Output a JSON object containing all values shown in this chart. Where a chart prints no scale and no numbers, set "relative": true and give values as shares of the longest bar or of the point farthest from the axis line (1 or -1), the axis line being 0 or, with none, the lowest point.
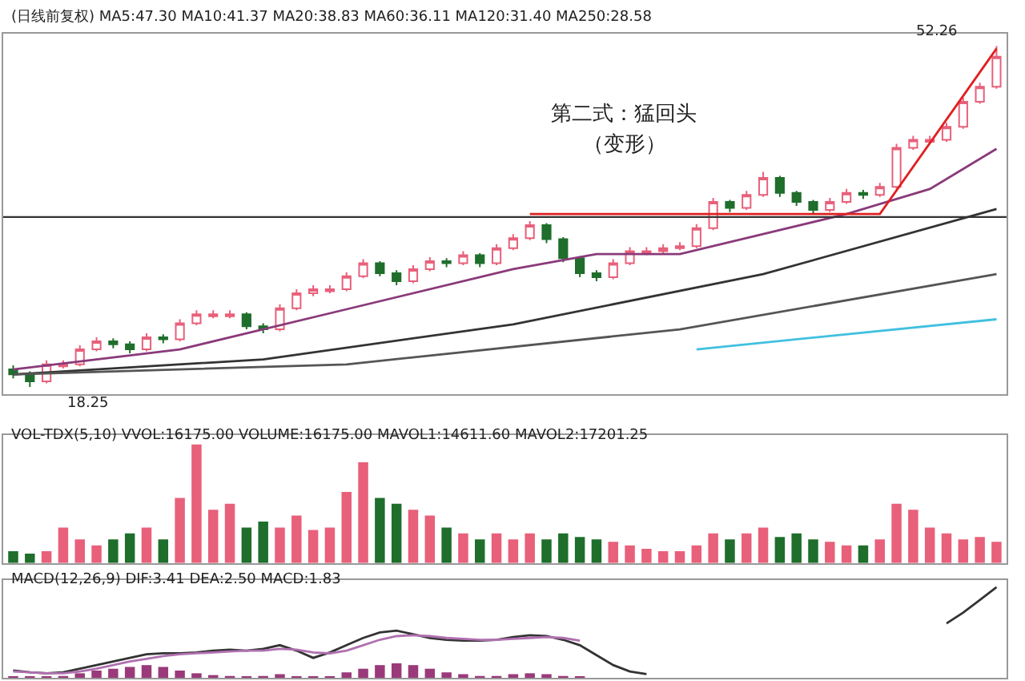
{
  "chart_data": [
    {
      "type": "candlestick",
      "categories": [
        null,
        null,
        null,
        null,
        null,
        null,
        null,
        null,
        null,
        null,
        null,
        null,
        null,
        null,
        null,
        null,
        null,
        null,
        null,
        null,
        null,
        null,
        null,
        null,
        null,
        null,
        null,
        null,
        null,
        null,
        null,
        null,
        null,
        null,
        null,
        null,
        null,
        null,
        null,
        null,
        null,
        null,
        null,
        null,
        null,
        null,
        null,
        null,
        null,
        null,
        null,
        null,
        null,
        null,
        null,
        null,
        null,
        null,
        null,
        null
      ],
      "ohlc": [
        [
          20.0,
          20.4,
          19.1,
          19.5
        ],
        [
          19.5,
          19.8,
          18.25,
          18.8
        ],
        [
          18.8,
          20.9,
          18.6,
          20.5
        ],
        [
          20.3,
          20.9,
          20.1,
          20.5
        ],
        [
          20.5,
          22.4,
          20.3,
          22.0
        ],
        [
          22.0,
          23.2,
          21.8,
          22.8
        ],
        [
          22.8,
          23.1,
          22.1,
          22.5
        ],
        [
          22.5,
          22.8,
          21.6,
          22.0
        ],
        [
          22.0,
          23.6,
          21.8,
          23.2
        ],
        [
          23.2,
          23.5,
          22.6,
          23.0
        ],
        [
          23.0,
          25.0,
          22.8,
          24.6
        ],
        [
          24.6,
          25.9,
          24.4,
          25.5
        ],
        [
          25.3,
          25.9,
          25.1,
          25.5
        ],
        [
          25.3,
          25.9,
          25.1,
          25.5
        ],
        [
          25.5,
          25.7,
          24.0,
          24.3
        ],
        [
          24.3,
          24.6,
          23.6,
          24.0
        ],
        [
          24.0,
          26.5,
          23.8,
          26.1
        ],
        [
          26.1,
          28.0,
          25.9,
          27.6
        ],
        [
          27.6,
          28.4,
          27.3,
          28.0
        ],
        [
          27.8,
          28.4,
          27.6,
          28.0
        ],
        [
          28.0,
          29.7,
          27.8,
          29.3
        ],
        [
          29.3,
          31.0,
          29.1,
          30.6
        ],
        [
          30.6,
          30.8,
          29.3,
          29.6
        ],
        [
          29.6,
          29.9,
          28.4,
          28.8
        ],
        [
          28.8,
          30.4,
          28.6,
          30.0
        ],
        [
          30.0,
          31.2,
          29.8,
          30.8
        ],
        [
          30.8,
          31.1,
          30.2,
          30.6
        ],
        [
          30.6,
          31.8,
          30.4,
          31.4
        ],
        [
          31.4,
          31.6,
          30.2,
          30.6
        ],
        [
          30.6,
          32.5,
          30.4,
          32.1
        ],
        [
          32.1,
          33.5,
          31.9,
          33.1
        ],
        [
          33.1,
          34.8,
          32.9,
          34.4
        ],
        [
          34.4,
          34.6,
          32.6,
          33.0
        ],
        [
          33.0,
          33.2,
          30.7,
          31.1
        ],
        [
          31.1,
          31.3,
          29.2,
          29.6
        ],
        [
          29.6,
          29.9,
          28.8,
          29.2
        ],
        [
          29.2,
          31.0,
          29.0,
          30.6
        ],
        [
          30.6,
          32.2,
          30.4,
          31.8
        ],
        [
          31.6,
          32.2,
          31.4,
          31.8
        ],
        [
          31.8,
          32.5,
          31.6,
          32.1
        ],
        [
          32.1,
          32.7,
          31.9,
          32.3
        ],
        [
          32.3,
          34.5,
          32.1,
          34.1
        ],
        [
          34.1,
          37.1,
          33.9,
          36.7
        ],
        [
          36.7,
          36.9,
          35.7,
          36.1
        ],
        [
          36.1,
          37.8,
          35.9,
          37.4
        ],
        [
          37.4,
          39.7,
          37.2,
          39.1
        ],
        [
          39.1,
          39.3,
          37.2,
          37.6
        ],
        [
          37.6,
          37.8,
          36.3,
          36.7
        ],
        [
          36.7,
          36.9,
          35.5,
          35.9
        ],
        [
          35.9,
          37.1,
          35.7,
          36.7
        ],
        [
          36.7,
          38.0,
          36.5,
          37.6
        ],
        [
          37.6,
          37.9,
          37.0,
          37.4
        ],
        [
          37.4,
          38.6,
          37.2,
          38.2
        ],
        [
          38.2,
          42.5,
          38.0,
          42.1
        ],
        [
          42.1,
          43.3,
          41.9,
          42.9
        ],
        [
          42.7,
          43.3,
          42.5,
          42.9
        ],
        [
          42.9,
          44.6,
          42.7,
          44.2
        ],
        [
          44.2,
          47.1,
          44.0,
          46.7
        ],
        [
          46.7,
          48.6,
          46.5,
          48.2
        ],
        [
          48.2,
          52.26,
          48.0,
          51.2
        ]
      ],
      "colors": [
        "#1f6e2c",
        "#1f6e2c",
        "#e8607a",
        "#e8607a",
        "#e8607a",
        "#e8607a",
        "#1f6e2c",
        "#1f6e2c",
        "#e8607a",
        "#1f6e2c",
        "#e8607a",
        "#e8607a",
        "#e8607a",
        "#e8607a",
        "#1f6e2c",
        "#1f6e2c",
        "#e8607a",
        "#e8607a",
        "#e8607a",
        "#e8607a",
        "#e8607a",
        "#e8607a",
        "#1f6e2c",
        "#1f6e2c",
        "#e8607a",
        "#e8607a",
        "#1f6e2c",
        "#e8607a",
        "#1f6e2c",
        "#e8607a",
        "#e8607a",
        "#e8607a",
        "#1f6e2c",
        "#1f6e2c",
        "#1f6e2c",
        "#1f6e2c",
        "#e8607a",
        "#e8607a",
        "#e8607a",
        "#e8607a",
        "#e8607a",
        "#e8607a",
        "#e8607a",
        "#1f6e2c",
        "#e8607a",
        "#e8607a",
        "#1f6e2c",
        "#1f6e2c",
        "#1f6e2c",
        "#e8607a",
        "#e8607a",
        "#1f6e2c",
        "#e8607a",
        "#e8607a",
        "#e8607a",
        "#e8607a",
        "#e8607a",
        "#e8607a",
        "#e8607a",
        "#e8607a"
      ],
      "series": [
        {
          "type": "line",
          "color": "#8a3a7a",
          "values": [
            20.0,
            null,
            null,
            null,
            null,
            null,
            null,
            null,
            null,
            null,
            22.0,
            null,
            null,
            null,
            null,
            null,
            null,
            null,
            null,
            null,
            26.0,
            null,
            null,
            null,
            null,
            null,
            null,
            null,
            null,
            null,
            30.0,
            null,
            null,
            null,
            null,
            31.5,
            null,
            null,
            null,
            null,
            31.5,
            null,
            null,
            null,
            null,
            33.5,
            null,
            null,
            null,
            null,
            35.5,
            null,
            null,
            null,
            null,
            38.0,
            null,
            null,
            null,
            42.0
          ]
        },
        {
          "type": "line",
          "color": "#333333",
          "values": [
            19.5,
            null,
            null,
            null,
            null,
            null,
            null,
            null,
            null,
            null,
            null,
            null,
            null,
            null,
            null,
            21.0,
            null,
            null,
            null,
            null,
            null,
            null,
            null,
            null,
            null,
            null,
            null,
            null,
            null,
            null,
            24.5,
            null,
            null,
            null,
            null,
            null,
            null,
            null,
            null,
            null,
            null,
            null,
            null,
            null,
            null,
            29.5,
            null,
            null,
            null,
            null,
            null,
            null,
            null,
            null,
            null,
            null,
            null,
            null,
            null,
            36.0
          ]
        },
        {
          "type": "line",
          "color": "#555555",
          "values": [
            19.5,
            null,
            null,
            null,
            null,
            null,
            null,
            null,
            null,
            null,
            null,
            null,
            null,
            null,
            null,
            null,
            null,
            null,
            null,
            null,
            20.5,
            null,
            null,
            null,
            null,
            null,
            null,
            null,
            null,
            null,
            null,
            null,
            null,
            null,
            null,
            null,
            null,
            null,
            null,
            null,
            24.0,
            null,
            null,
            null,
            null,
            null,
            null,
            null,
            null,
            null,
            null,
            null,
            null,
            null,
            null,
            null,
            null,
            null,
            null,
            29.5
          ]
        },
        {
          "type": "line",
          "color": "#40c0e0",
          "values": [
            null,
            null,
            null,
            null,
            null,
            null,
            null,
            null,
            null,
            null,
            null,
            null,
            null,
            null,
            null,
            null,
            null,
            null,
            null,
            null,
            null,
            null,
            null,
            null,
            null,
            null,
            null,
            null,
            null,
            null,
            null,
            null,
            null,
            null,
            null,
            null,
            null,
            null,
            null,
            null,
            null,
            22.0,
            null,
            null,
            null,
            null,
            null,
            null,
            null,
            null,
            null,
            null,
            null,
            null,
            null,
            null,
            null,
            null,
            null,
            25.0
          ]
        },
        {
          "type": "line",
          "color": "#e02020",
          "values": [
            null,
            null,
            null,
            null,
            null,
            null,
            null,
            null,
            null,
            null,
            null,
            null,
            null,
            null,
            null,
            null,
            null,
            null,
            null,
            null,
            null,
            null,
            null,
            null,
            null,
            null,
            null,
            null,
            null,
            null,
            null,
            35.5,
            null,
            null,
            null,
            null,
            null,
            null,
            null,
            null,
            null,
            null,
            null,
            null,
            null,
            null,
            null,
            null,
            null,
            null,
            null,
            null,
            35.5,
            null,
            null,
            null,
            null,
            null,
            null,
            52.0
          ]
        }
      ],
      "ref_lines": [
        {
          "axis": "y",
          "value": 35.2,
          "color": "#333333"
        }
      ],
      "ylim": [
        17.5,
        53.5
      ],
      "tick_labels": false,
      "annotations": [
        "(日线前复权) MA5:47.30 MA10:41.37 MA20:38.83 MA60:36.11 MA120:31.40 MA250:28.58",
        "52.26",
        "18.25",
        "第二式：猛回头",
        "（变形）"
      ]
    },
    {
      "type": "bar",
      "relative": true,
      "categories": [
        null,
        null,
        null,
        null,
        null,
        null,
        null,
        null,
        null,
        null,
        null,
        null,
        null,
        null,
        null,
        null,
        null,
        null,
        null,
        null,
        null,
        null,
        null,
        null,
        null,
        null,
        null,
        null,
        null,
        null,
        null,
        null,
        null,
        null,
        null,
        null,
        null,
        null,
        null,
        null,
        null,
        null,
        null,
        null,
        null,
        null,
        null,
        null,
        null,
        null,
        null,
        null,
        null,
        null,
        null,
        null,
        null,
        null,
        null,
        null
      ],
      "values": [
        0.1,
        0.08,
        0.1,
        0.3,
        0.2,
        0.15,
        0.2,
        0.25,
        0.3,
        0.2,
        0.55,
        1.0,
        0.45,
        0.5,
        0.3,
        0.35,
        0.3,
        0.4,
        0.28,
        0.3,
        0.6,
        0.85,
        0.55,
        0.5,
        0.45,
        0.4,
        0.3,
        0.25,
        0.2,
        0.25,
        0.2,
        0.25,
        0.2,
        0.25,
        0.22,
        0.2,
        0.18,
        0.15,
        0.12,
        0.1,
        0.1,
        0.15,
        0.25,
        0.2,
        0.25,
        0.3,
        0.22,
        0.25,
        0.2,
        0.18,
        0.15,
        0.15,
        0.2,
        0.5,
        0.45,
        0.3,
        0.25,
        0.2,
        0.22,
        0.18
      ],
      "colors": [
        "#1f6e2c",
        "#1f6e2c",
        "#e8607a",
        "#e8607a",
        "#e8607a",
        "#e8607a",
        "#1f6e2c",
        "#1f6e2c",
        "#e8607a",
        "#1f6e2c",
        "#e8607a",
        "#e8607a",
        "#e8607a",
        "#e8607a",
        "#1f6e2c",
        "#1f6e2c",
        "#e8607a",
        "#e8607a",
        "#e8607a",
        "#e8607a",
        "#e8607a",
        "#e8607a",
        "#1f6e2c",
        "#1f6e2c",
        "#e8607a",
        "#e8607a",
        "#1f6e2c",
        "#e8607a",
        "#1f6e2c",
        "#e8607a",
        "#e8607a",
        "#e8607a",
        "#1f6e2c",
        "#1f6e2c",
        "#1f6e2c",
        "#1f6e2c",
        "#e8607a",
        "#e8607a",
        "#e8607a",
        "#e8607a",
        "#e8607a",
        "#e8607a",
        "#e8607a",
        "#1f6e2c",
        "#e8607a",
        "#e8607a",
        "#1f6e2c",
        "#1f6e2c",
        "#1f6e2c",
        "#e8607a",
        "#e8607a",
        "#1f6e2c",
        "#e8607a",
        "#e8607a",
        "#e8607a",
        "#e8607a",
        "#e8607a",
        "#e8607a",
        "#e8607a",
        "#e8607a"
      ],
      "tick_labels": false,
      "annotations": [
        "VOL-TDX(5,10) VVOL:16175.00 VOLUME:16175.00 MAVOL1:14611.60 MAVOL2:17201.25"
      ]
    },
    {
      "type": "line",
      "relative": true,
      "categories": [
        null,
        null,
        null,
        null,
        null,
        null,
        null,
        null,
        null,
        null,
        null,
        null,
        null,
        null,
        null,
        null,
        null,
        null,
        null,
        null,
        null,
        null,
        null,
        null,
        null,
        null,
        null,
        null,
        null,
        null,
        null,
        null,
        null,
        null,
        null,
        null,
        null,
        null,
        null,
        null,
        null,
        null,
        null,
        null,
        null,
        null,
        null,
        null,
        null,
        null,
        null,
        null,
        null,
        null,
        null,
        null,
        null,
        null,
        null,
        null
      ],
      "series": [
        {
          "color": "#333333",
          "values": [
            0.08,
            0.06,
            0.05,
            0.06,
            0.1,
            0.14,
            0.18,
            0.22,
            0.26,
            0.27,
            0.27,
            0.28,
            0.3,
            0.31,
            0.3,
            0.32,
            0.36,
            0.3,
            0.22,
            0.28,
            0.36,
            0.44,
            0.5,
            0.52,
            0.48,
            0.44,
            0.42,
            0.41,
            0.41,
            0.42,
            0.45,
            0.47,
            0.46,
            0.42,
            0.36,
            0.25,
            0.14,
            0.07,
            0.04,
            null,
            null,
            null,
            null,
            null,
            null,
            null,
            null,
            null,
            null,
            null,
            null,
            null,
            null,
            null,
            null,
            null,
            0.6,
            0.72,
            0.86,
            1.0
          ]
        },
        {
          "color": "#b070b0",
          "values": [
            0.07,
            0.06,
            0.05,
            0.05,
            0.07,
            0.1,
            0.14,
            0.18,
            0.21,
            0.24,
            0.26,
            0.27,
            0.28,
            0.29,
            0.3,
            0.3,
            0.32,
            0.31,
            0.28,
            0.27,
            0.3,
            0.36,
            0.42,
            0.46,
            0.47,
            0.46,
            0.44,
            0.43,
            0.42,
            0.42,
            0.43,
            0.44,
            0.45,
            0.44,
            0.41,
            null,
            null,
            null,
            null,
            null,
            null,
            null,
            null,
            null,
            null,
            null,
            null,
            null,
            null,
            null,
            null,
            null,
            null,
            null,
            null,
            null,
            null,
            null,
            null,
            null
          ]
        },
        {
          "type": "bar",
          "color": "#9a3a7a",
          "values": [
            0.01,
            0.01,
            0.01,
            0.02,
            0.05,
            0.08,
            0.1,
            0.12,
            0.14,
            0.12,
            0.08,
            0.05,
            0.03,
            0.02,
            0.01,
            0.02,
            0.04,
            0.01,
            0.01,
            0.01,
            0.06,
            0.1,
            0.14,
            0.16,
            0.14,
            0.1,
            0.06,
            0.04,
            0.02,
            0.02,
            0.04,
            0.05,
            0.04,
            0.02,
            0.01,
            null,
            null,
            null,
            null,
            null,
            null,
            null,
            null,
            null,
            null,
            null,
            null,
            null,
            null,
            null,
            null,
            null,
            null,
            null,
            null,
            null,
            null,
            null,
            null,
            null
          ]
        }
      ],
      "tick_labels": false,
      "annotations": [
        "MACD(12,26,9) DIF:3.41 DEA:2.50 MACD:1.83"
      ]
    }
  ]
}
